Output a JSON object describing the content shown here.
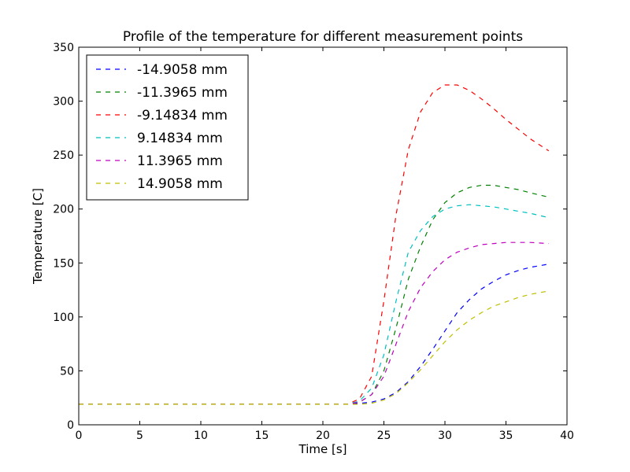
{
  "chart_data": {
    "type": "line",
    "title": "Profile of the temperature for different measurement points",
    "xlabel": "Time [s]",
    "ylabel": "Temperature [C]",
    "xlim": [
      0,
      40
    ],
    "ylim": [
      0,
      350
    ],
    "xticks": [
      "0",
      "5",
      "10",
      "15",
      "20",
      "25",
      "30",
      "35",
      "40"
    ],
    "yticks": [
      "0",
      "50",
      "100",
      "150",
      "200",
      "250",
      "300",
      "350"
    ],
    "grid": false,
    "legend_position": "top-left",
    "x": [
      0,
      5,
      10,
      15,
      20,
      22,
      23,
      24,
      25,
      26,
      27,
      28,
      29,
      30,
      31,
      32,
      33,
      34,
      35,
      36,
      37,
      38.5
    ],
    "series": [
      {
        "name": "-14.9058 mm",
        "color": "#0000ff",
        "values": [
          19,
          19,
          19,
          19,
          19,
          19,
          20,
          21,
          24,
          30,
          40,
          54,
          70,
          87,
          104,
          116,
          126,
          133,
          139,
          143,
          146,
          149
        ]
      },
      {
        "name": "-11.3965 mm",
        "color": "#008000",
        "values": [
          19,
          19,
          19,
          19,
          19,
          19,
          21,
          28,
          50,
          90,
          135,
          165,
          190,
          206,
          215,
          220,
          222,
          222,
          220,
          218,
          215,
          211
        ]
      },
      {
        "name": "-9.14834 mm",
        "color": "#ff0000",
        "values": [
          19,
          19,
          19,
          19,
          19,
          19,
          24,
          45,
          115,
          195,
          255,
          290,
          308,
          315,
          315,
          310,
          302,
          293,
          283,
          274,
          265,
          254
        ]
      },
      {
        "name": "9.14834 mm",
        "color": "#00bfbf",
        "values": [
          19,
          19,
          19,
          19,
          19,
          19,
          22,
          34,
          65,
          115,
          160,
          180,
          193,
          200,
          203,
          204,
          203,
          202,
          200,
          198,
          196,
          192
        ]
      },
      {
        "name": "11.3965 mm",
        "color": "#bf00bf",
        "values": [
          19,
          19,
          19,
          19,
          19,
          19,
          21,
          28,
          45,
          75,
          105,
          127,
          142,
          153,
          160,
          164,
          167,
          168,
          169,
          169,
          169,
          168
        ]
      },
      {
        "name": "14.9058 mm",
        "color": "#bfbf00",
        "values": [
          19,
          19,
          19,
          19,
          19,
          19,
          19,
          20,
          23,
          29,
          39,
          51,
          64,
          77,
          88,
          97,
          104,
          110,
          114,
          118,
          121,
          124
        ]
      }
    ]
  }
}
